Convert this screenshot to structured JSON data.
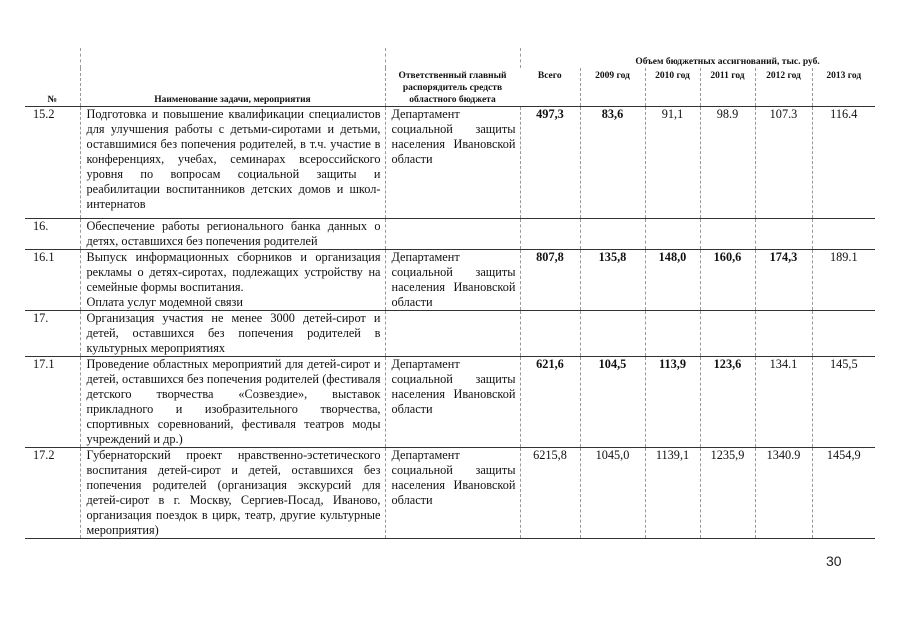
{
  "header": {
    "num": "№",
    "name": "Наименование задачи, мероприятия",
    "dept": "Ответственный главный распорядитель средств областного бюджета",
    "budget_group": "Объем бюджетных ассигнований, тыс. руб.",
    "total": "Всего",
    "years": [
      "2009 год",
      "2010 год",
      "2011 год",
      "2012 год",
      "2013 год"
    ]
  },
  "rows": [
    {
      "num": "15.2",
      "name": "Подготовка и повышение квалификации специалистов для улучшения работы с детьми-сиротами и детьми, оставшимися без попечения родителей, в т.ч. участие в конференциях, учебах, семинарах всероссийского уровня по вопросам социальной защиты и реабилитации воспитанников детских домов и школ-интернатов",
      "dept": "Департамент социальной защиты населения Ивановской области",
      "total": "497,3",
      "values": [
        "83,6",
        "91,1",
        "98.9",
        "107.3",
        "116.4"
      ]
    },
    {
      "num": "16.",
      "name": "Обеспечение работы регионального банка данных о детях, оставшихся без попечения родителей",
      "dept": "",
      "total": "",
      "values": [
        "",
        "",
        "",
        "",
        ""
      ]
    },
    {
      "num": "16.1",
      "name": "Выпуск информационных сборников и организация рекламы о детях-сиротах, подлежащих устройству на семейные формы воспитания.",
      "name2": "Оплата услуг модемной связи",
      "dept": "Департамент социальной защиты населения Ивановской области",
      "total": "807,8",
      "values": [
        "135,8",
        "148,0",
        "160,6",
        "174,3",
        "189.1"
      ]
    },
    {
      "num": "17.",
      "name": "Организация участия не менее 3000 детей-сирот и детей, оставшихся без попечения родителей в культурных мероприятиях",
      "dept": "",
      "total": "",
      "values": [
        "",
        "",
        "",
        "",
        ""
      ]
    },
    {
      "num": "17.1",
      "name": "Проведение областных мероприятий для детей-сирот и детей, оставшихся без попечения родителей (фестиваля детского творчества «Созвездие», выставок прикладного и изобразительного творчества, спортивных соревнований, фестиваля театров моды учреждений и др.)",
      "dept": "Департамент социальной защиты населения Ивановской области",
      "total": "621,6",
      "values": [
        "104,5",
        "113,9",
        "123,6",
        "134.1",
        "145,5"
      ]
    },
    {
      "num": "17.2",
      "name": "Губернаторский проект нравственно-эстетического воспитания детей-сирот и детей, оставшихся без попечения родителей (организация экскурсий для детей-сирот в г. Москву, Сергиев-Посад, Иваново, организация поездок в цирк, театр, другие культурные мероприятия)",
      "dept": "Департамент социальной защиты населения Ивановской области",
      "total": "6215,8",
      "values": [
        "1045,0",
        "1139,1",
        "1235,9",
        "1340.9",
        "1454,9"
      ]
    }
  ],
  "page_number": "30"
}
